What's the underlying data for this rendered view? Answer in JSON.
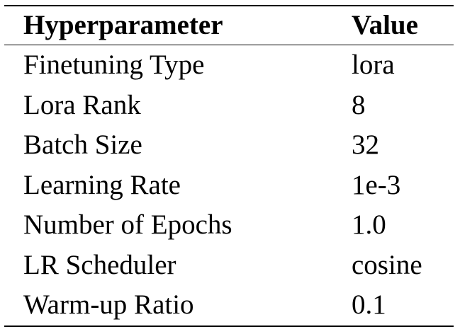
{
  "table": {
    "headers": [
      "Hyperparameter",
      "Value"
    ],
    "rows": [
      [
        "Finetuning Type",
        "lora"
      ],
      [
        "Lora Rank",
        "8"
      ],
      [
        "Batch Size",
        "32"
      ],
      [
        "Learning Rate",
        "1e-3"
      ],
      [
        "Number of Epochs",
        "1.0"
      ],
      [
        "LR Scheduler",
        "cosine"
      ],
      [
        "Warm-up Ratio",
        "0.1"
      ]
    ]
  }
}
